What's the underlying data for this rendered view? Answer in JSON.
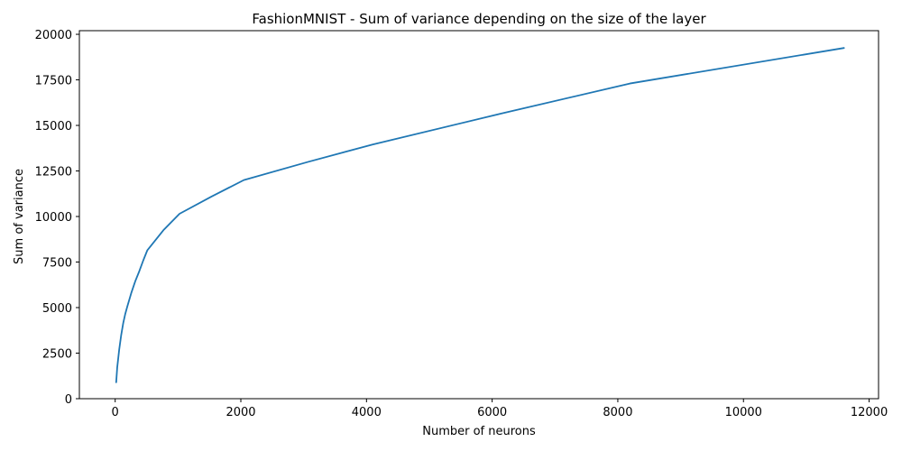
{
  "chart_data": {
    "type": "line",
    "title": "FashionMNIST - Sum of variance depending on the size of the layer",
    "xlabel": "Number of neurons",
    "ylabel": "Sum of variance",
    "xlim": [
      -570,
      12150
    ],
    "ylim": [
      0,
      20200
    ],
    "grid": false,
    "xticks": [
      0,
      2000,
      4000,
      6000,
      8000,
      10000,
      12000
    ],
    "xtick_labels": [
      "0",
      "2000",
      "4000",
      "6000",
      "8000",
      "10000",
      "12000"
    ],
    "yticks": [
      0,
      2500,
      5000,
      7500,
      10000,
      12500,
      15000,
      17500,
      20000
    ],
    "ytick_labels": [
      "0",
      "2500",
      "5000",
      "7500",
      "10000",
      "12500",
      "15000",
      "17500",
      "20000"
    ],
    "series": [
      {
        "color": "#1f77b4",
        "x": [
          16,
          32,
          64,
          96,
          128,
          160,
          192,
          256,
          320,
          384,
          448,
          512,
          768,
          1024,
          1536,
          2048,
          3072,
          4096,
          6144,
          8192,
          11600
        ],
        "y": [
          900,
          1700,
          2700,
          3500,
          4150,
          4650,
          5050,
          5800,
          6450,
          7000,
          7600,
          8150,
          9250,
          10150,
          11100,
          12000,
          13000,
          13950,
          15650,
          17300,
          19250
        ]
      }
    ]
  }
}
